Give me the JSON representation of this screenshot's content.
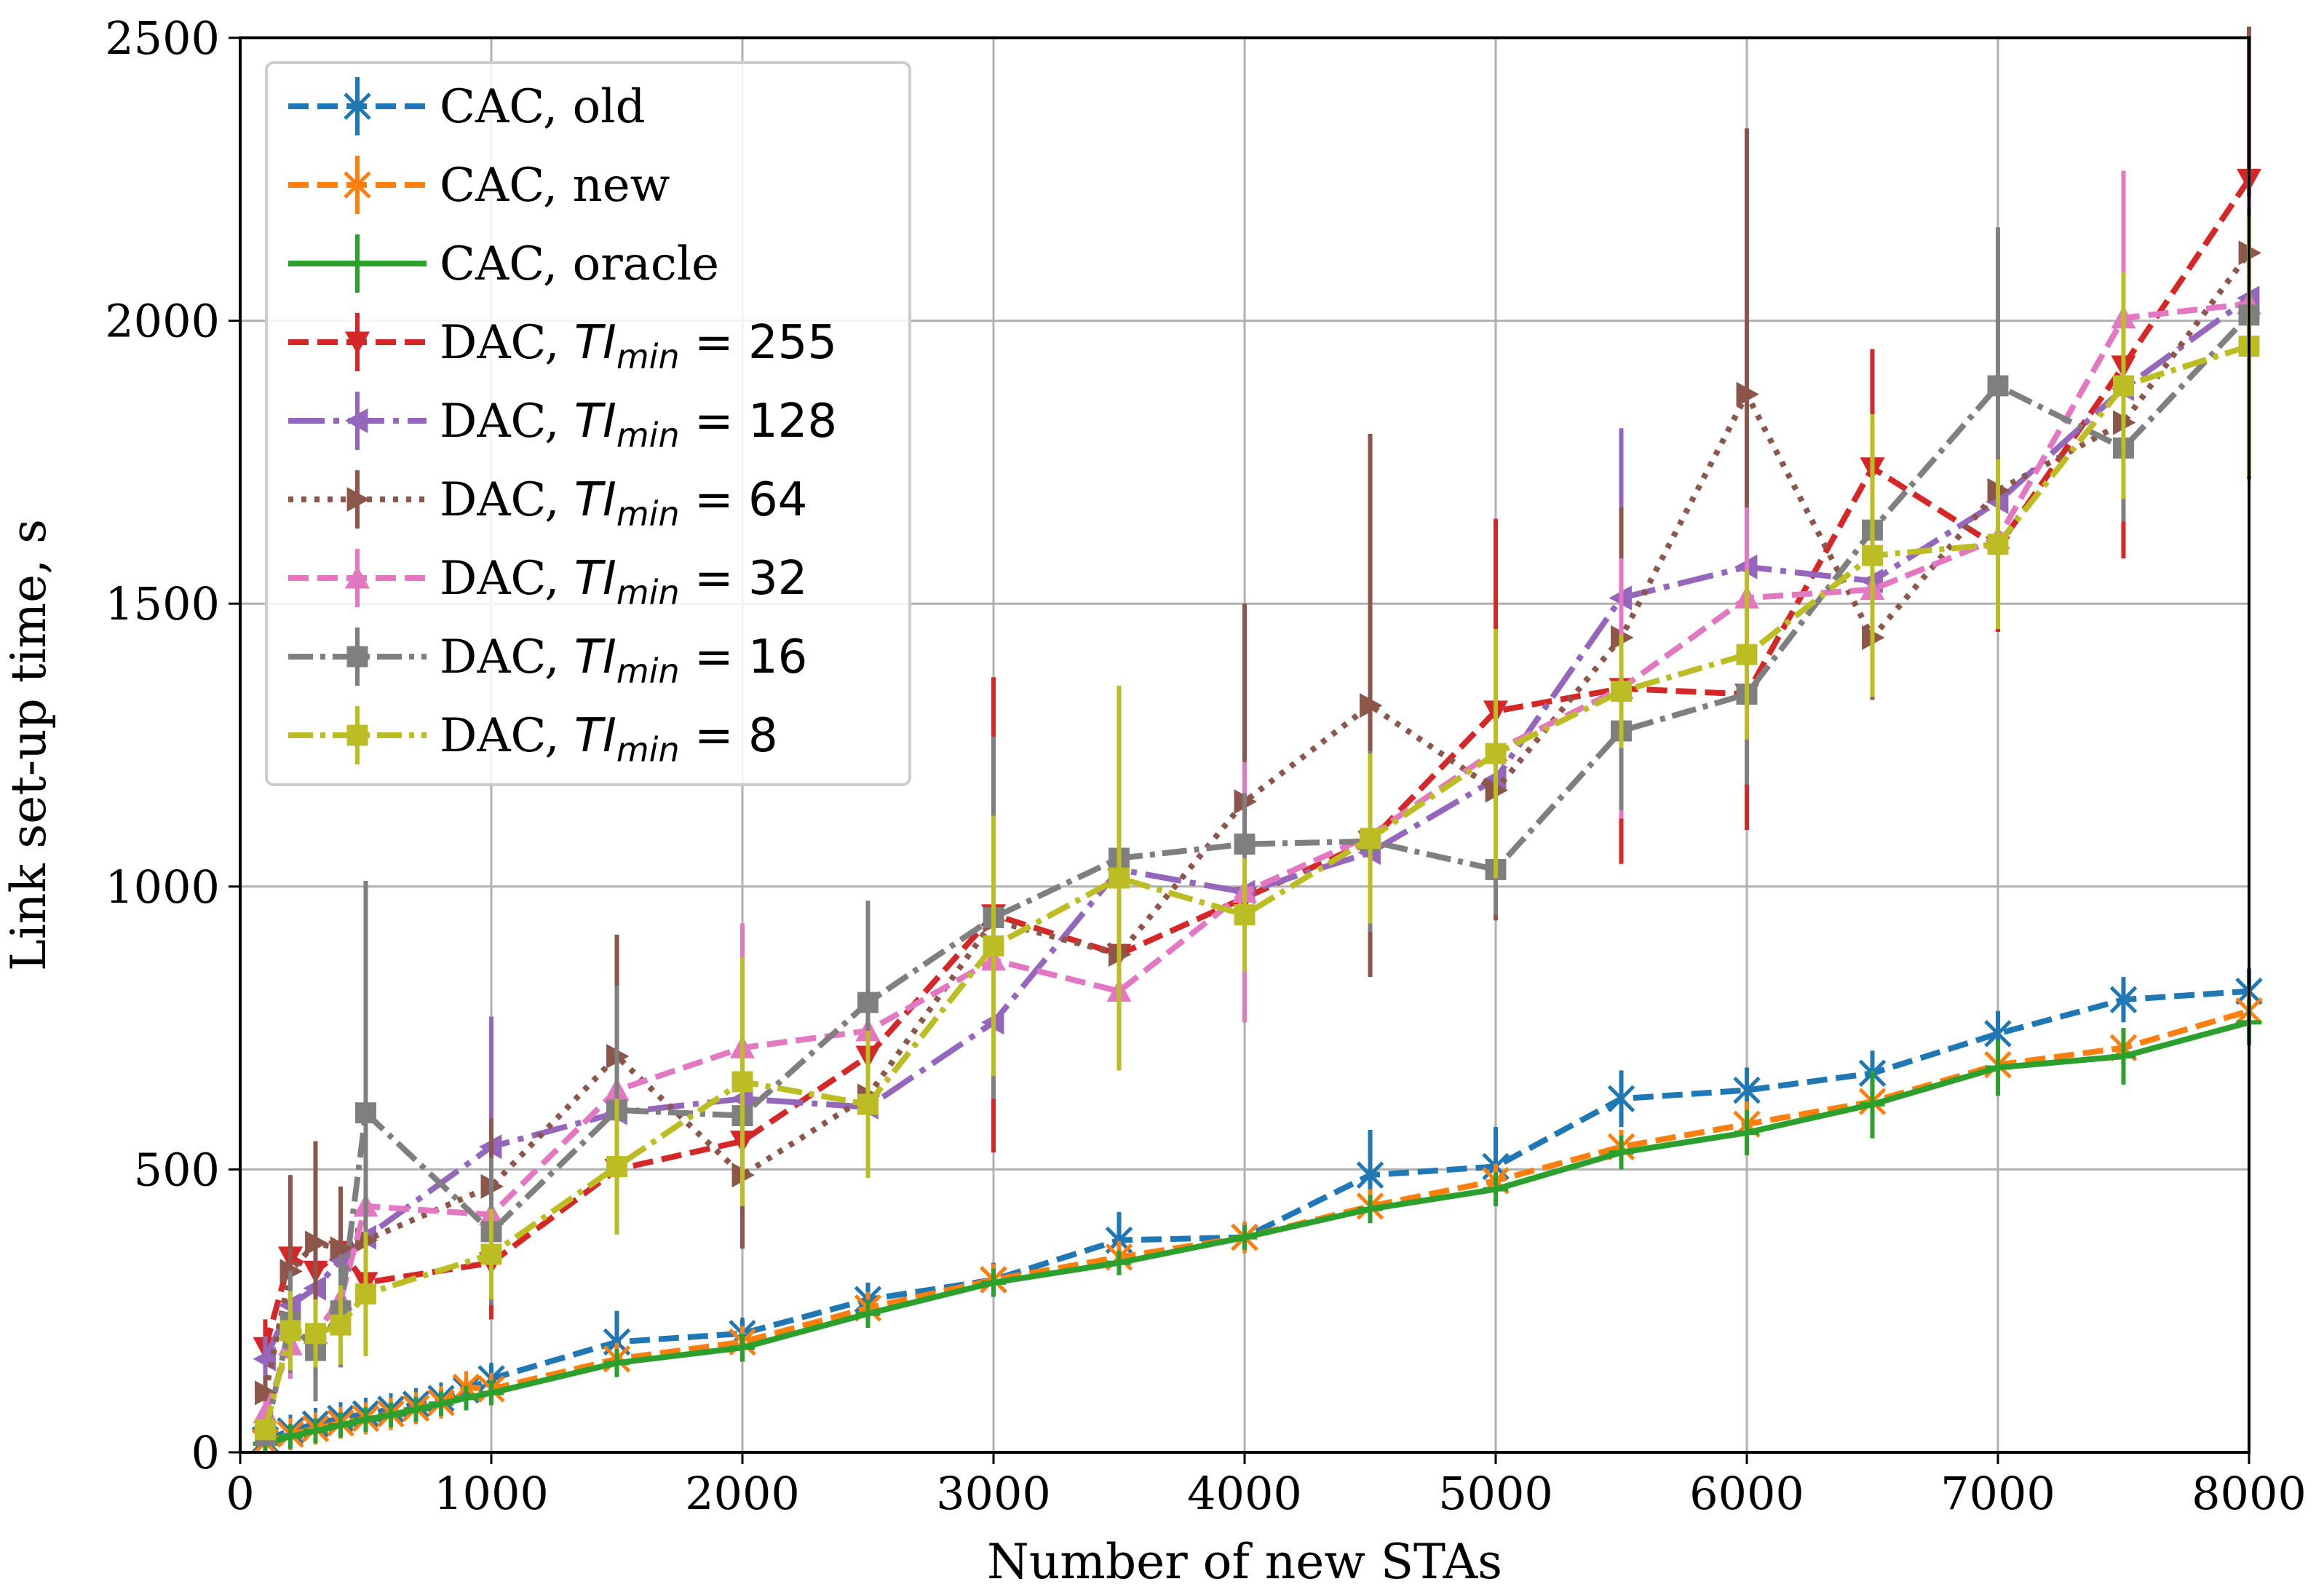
{
  "chart_data": {
    "type": "line",
    "title": "",
    "xlabel": "Number of new STAs",
    "ylabel": "Link set-up time, s",
    "xlim": [
      0,
      8000
    ],
    "ylim": [
      0,
      2500
    ],
    "xticks": [
      0,
      1000,
      2000,
      3000,
      4000,
      5000,
      6000,
      7000,
      8000
    ],
    "yticks": [
      0,
      500,
      1000,
      1500,
      2000,
      2500
    ],
    "grid": true,
    "legend_position": "top-left",
    "series": [
      {
        "name": "CAC, old",
        "label_prefix": "CAC, old",
        "math_sub": "",
        "math_value": "",
        "color": "#1f77b4",
        "dash": "dashed",
        "marker": "x-star",
        "x": [
          100,
          200,
          300,
          400,
          500,
          600,
          700,
          800,
          900,
          1000,
          1500,
          2000,
          2500,
          3000,
          3500,
          4000,
          4500,
          5000,
          5500,
          6000,
          6500,
          7000,
          7500,
          8000
        ],
        "y": [
          22,
          38,
          50,
          60,
          68,
          76,
          85,
          95,
          110,
          130,
          195,
          210,
          270,
          305,
          375,
          380,
          490,
          505,
          625,
          640,
          670,
          740,
          800,
          815
        ],
        "err": [
          5,
          8,
          10,
          12,
          12,
          14,
          15,
          16,
          20,
          25,
          55,
          25,
          30,
          30,
          50,
          25,
          80,
          70,
          50,
          40,
          40,
          40,
          40,
          40
        ]
      },
      {
        "name": "CAC, new",
        "label_prefix": "CAC, new",
        "math_sub": "",
        "math_value": "",
        "color": "#ff7f0e",
        "dash": "dashed",
        "marker": "x-star",
        "x": [
          100,
          200,
          300,
          400,
          500,
          600,
          700,
          800,
          900,
          1000,
          1500,
          2000,
          2500,
          3000,
          3500,
          4000,
          4500,
          5000,
          5500,
          6000,
          6500,
          7000,
          7500,
          8000
        ],
        "y": [
          18,
          32,
          42,
          52,
          60,
          68,
          78,
          88,
          115,
          112,
          165,
          195,
          255,
          305,
          345,
          380,
          435,
          480,
          540,
          580,
          620,
          685,
          715,
          780
        ],
        "err": [
          5,
          8,
          8,
          10,
          10,
          12,
          12,
          14,
          15,
          20,
          25,
          25,
          25,
          25,
          25,
          25,
          30,
          30,
          30,
          40,
          30,
          30,
          30,
          30
        ]
      },
      {
        "name": "CAC, oracle",
        "label_prefix": "CAC, oracle",
        "math_sub": "",
        "math_value": "",
        "color": "#2ca02c",
        "dash": "solid",
        "marker": "plus",
        "x": [
          100,
          200,
          300,
          400,
          500,
          600,
          700,
          800,
          900,
          1000,
          1500,
          2000,
          2500,
          3000,
          3500,
          4000,
          4500,
          5000,
          5500,
          6000,
          6500,
          7000,
          7500,
          8000
        ],
        "y": [
          15,
          28,
          38,
          48,
          58,
          66,
          76,
          86,
          96,
          105,
          158,
          185,
          245,
          300,
          335,
          380,
          430,
          465,
          530,
          565,
          615,
          680,
          700,
          760
        ],
        "err": [
          4,
          6,
          8,
          8,
          10,
          10,
          10,
          12,
          12,
          15,
          25,
          25,
          25,
          25,
          20,
          20,
          25,
          30,
          30,
          40,
          60,
          50,
          50,
          40
        ]
      },
      {
        "name": "DAC, TImin = 255",
        "label_prefix": "DAC, ",
        "math_sub": "min",
        "math_value": " = 255",
        "color": "#d62728",
        "dash": "dashed",
        "marker": "triangle-down",
        "x": [
          100,
          200,
          300,
          400,
          500,
          1000,
          1500,
          2000,
          2500,
          3000,
          3500,
          4000,
          4500,
          5000,
          5500,
          6000,
          6500,
          7000,
          7500,
          8000
        ],
        "y": [
          185,
          345,
          320,
          355,
          300,
          335,
          500,
          550,
          700,
          950,
          880,
          980,
          1080,
          1310,
          1350,
          1340,
          1740,
          1600,
          1920,
          2250
        ],
        "err": [
          50,
          70,
          60,
          110,
          60,
          100,
          110,
          110,
          60,
          420,
          150,
          170,
          200,
          340,
          310,
          240,
          210,
          150,
          340,
          260
        ]
      },
      {
        "name": "DAC, TImin = 128",
        "label_prefix": "DAC, ",
        "math_sub": "min",
        "math_value": " = 128",
        "color": "#9467bd",
        "dash": "dashdot-long",
        "marker": "triangle-left",
        "x": [
          100,
          200,
          300,
          400,
          500,
          1000,
          1500,
          2000,
          2500,
          3000,
          3500,
          4000,
          4500,
          5000,
          5500,
          6000,
          6500,
          7000,
          7500,
          8000
        ],
        "y": [
          165,
          260,
          290,
          340,
          380,
          540,
          600,
          625,
          610,
          760,
          1030,
          990,
          1060,
          1190,
          1510,
          1565,
          1540,
          1680,
          1880,
          2040
        ],
        "err": [
          40,
          80,
          60,
          70,
          60,
          230,
          80,
          60,
          60,
          120,
          100,
          120,
          160,
          150,
          300,
          110,
          150,
          140,
          200,
          160
        ]
      },
      {
        "name": "DAC, TImin = 64",
        "label_prefix": "DAC, ",
        "math_sub": "min",
        "math_value": " = 64",
        "color": "#8c564b",
        "dash": "dotted",
        "marker": "triangle-right",
        "x": [
          100,
          200,
          300,
          400,
          500,
          1000,
          1500,
          2000,
          2500,
          3000,
          3500,
          4000,
          4500,
          5000,
          5500,
          6000,
          6500,
          7000,
          7500,
          8000
        ],
        "y": [
          105,
          320,
          370,
          360,
          375,
          470,
          700,
          490,
          630,
          940,
          880,
          1150,
          1320,
          1170,
          1440,
          1870,
          1440,
          1700,
          1820,
          2120
        ],
        "err": [
          30,
          170,
          180,
          110,
          80,
          120,
          215,
          130,
          130,
          300,
          120,
          350,
          480,
          230,
          230,
          470,
          110,
          120,
          170,
          400
        ]
      },
      {
        "name": "DAC, TImin = 32",
        "label_prefix": "DAC, ",
        "math_sub": "min",
        "math_value": " = 32",
        "color": "#e377c2",
        "dash": "dashed",
        "marker": "triangle-up",
        "x": [
          100,
          200,
          300,
          400,
          500,
          1000,
          1500,
          2000,
          2500,
          3000,
          3500,
          4000,
          4500,
          5000,
          5500,
          6000,
          6500,
          7000,
          7500,
          8000
        ],
        "y": [
          70,
          190,
          210,
          270,
          435,
          420,
          640,
          715,
          745,
          870,
          815,
          990,
          1090,
          1240,
          1350,
          1510,
          1525,
          1615,
          2005,
          2030
        ],
        "err": [
          20,
          60,
          60,
          70,
          70,
          90,
          110,
          220,
          100,
          150,
          140,
          230,
          150,
          100,
          230,
          160,
          130,
          120,
          260,
          190
        ]
      },
      {
        "name": "DAC, TImin = 16",
        "label_prefix": "DAC, ",
        "math_sub": "min",
        "math_value": " = 16",
        "color": "#7f7f7f",
        "dash": "dashdot",
        "marker": "square",
        "x": [
          100,
          200,
          300,
          400,
          500,
          1000,
          1500,
          2000,
          2500,
          3000,
          3500,
          4000,
          4500,
          5000,
          5500,
          6000,
          6500,
          7000,
          7500,
          8000
        ],
        "y": [
          30,
          230,
          180,
          250,
          600,
          390,
          605,
          595,
          795,
          945,
          1050,
          1075,
          1080,
          1030,
          1275,
          1340,
          1630,
          1885,
          1775,
          2010
        ],
        "err": [
          15,
          90,
          90,
          100,
          410,
          130,
          220,
          80,
          180,
          320,
          100,
          90,
          160,
          80,
          140,
          160,
          120,
          280,
          130,
          190
        ]
      },
      {
        "name": "DAC, TImin = 8",
        "label_prefix": "DAC, ",
        "math_sub": "min",
        "math_value": " = 8",
        "color": "#bcbd22",
        "dash": "dashdot",
        "marker": "square",
        "x": [
          100,
          200,
          300,
          400,
          500,
          1000,
          1500,
          2000,
          2500,
          3000,
          3500,
          4000,
          4500,
          5000,
          5500,
          6000,
          6500,
          7000,
          7500,
          8000
        ],
        "y": [
          40,
          215,
          210,
          225,
          280,
          350,
          505,
          655,
          615,
          895,
          1015,
          950,
          1085,
          1235,
          1345,
          1410,
          1585,
          1605,
          1885,
          1955
        ],
        "err": [
          15,
          70,
          60,
          70,
          110,
          80,
          120,
          220,
          130,
          230,
          340,
          100,
          150,
          220,
          100,
          150,
          250,
          150,
          200,
          230
        ]
      }
    ]
  },
  "legend_math_symbol": "TI"
}
